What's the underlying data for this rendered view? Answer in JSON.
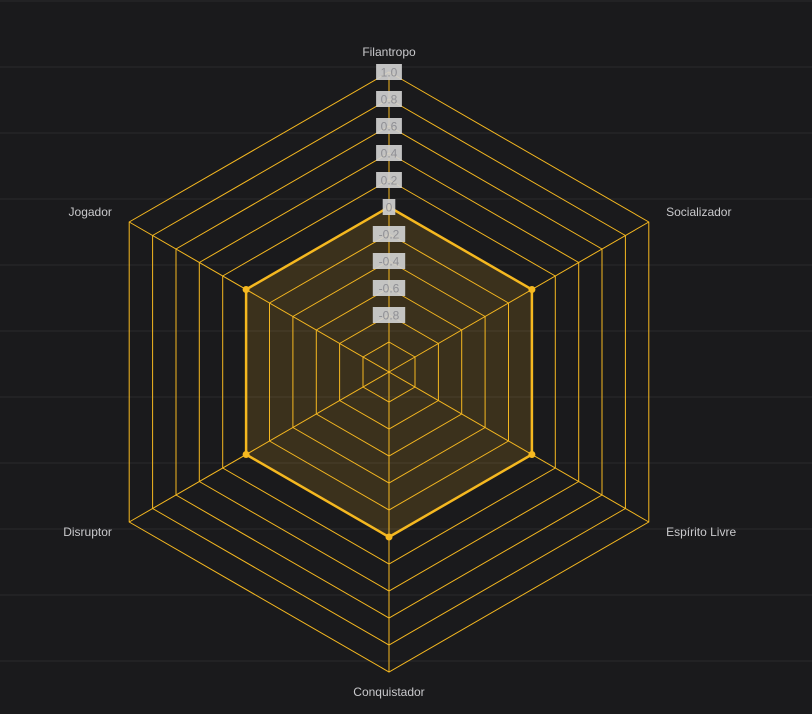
{
  "chart_data": {
    "type": "radar",
    "categories": [
      "Filantropo",
      "Socializador",
      "Espírito Livre",
      "Conquistador",
      "Disruptor",
      "Jogador"
    ],
    "series": [
      {
        "values": [
          0.0,
          0.0,
          0.0,
          0.0,
          0.0,
          0.0
        ]
      }
    ],
    "range": [
      -1.0,
      1.0
    ],
    "ticks": [
      "1.0",
      "0.8",
      "0.6",
      "0.4",
      "0.2",
      "0",
      "-0.2",
      "-0.4",
      "-0.6",
      "-0.8"
    ],
    "grid": true,
    "colors": {
      "background": "#1a1a1c",
      "grid": "#f5b820",
      "series": "#f5b820",
      "series_fill": "#f5b820",
      "band": "#2a2a2d",
      "label": "#c9c9cc"
    }
  }
}
